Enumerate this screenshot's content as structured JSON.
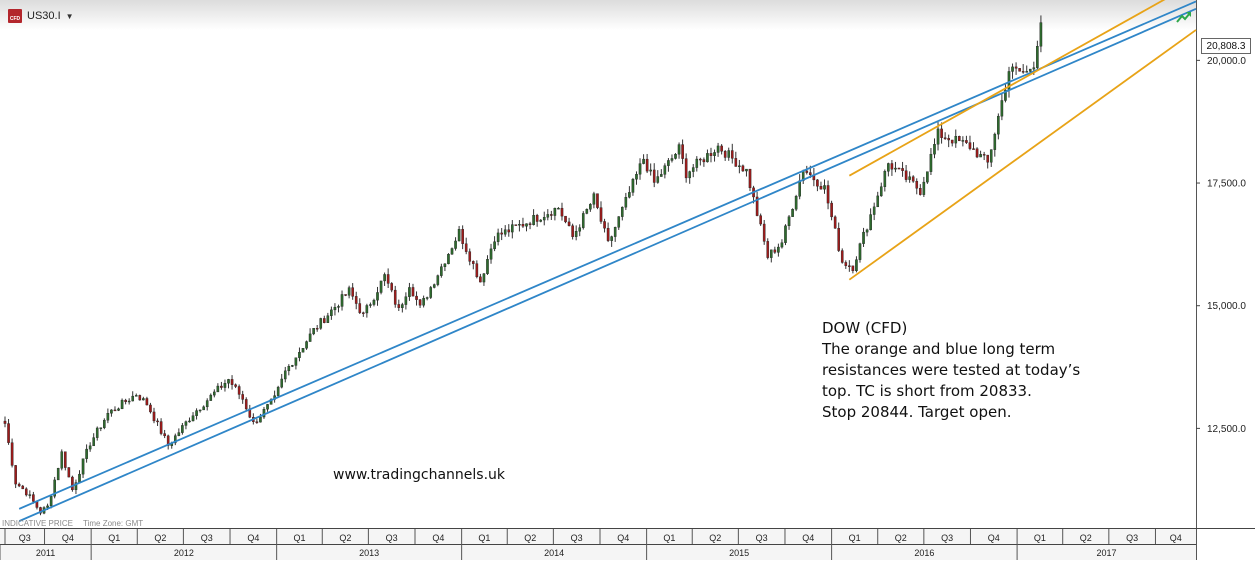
{
  "header": {
    "symbol": "US30.I",
    "icon": "cfd-icon",
    "caret": "▼"
  },
  "footer": {
    "indicative": "INDICATIVE PRICE",
    "timezone": "Time Zone: GMT"
  },
  "annotation": {
    "lines": [
      "DOW (CFD)",
      "The orange and blue long term",
      "resistances were tested at today’s",
      "top. TC is short from 20833.",
      "Stop 20844. Target open."
    ]
  },
  "website": "www.tradingchannels.uk",
  "last_price": "20,808.3",
  "colors": {
    "up": "#2e6b2e",
    "down": "#9e1b1b",
    "blue_line": "#2f86c8",
    "orange_line": "#e8a317",
    "grid": "#000000"
  },
  "chart_data": {
    "type": "candlestick",
    "y_ticks": [
      {
        "value": 12500,
        "label": "12,500.0"
      },
      {
        "value": 15000,
        "label": "15,000.0"
      },
      {
        "value": 17500,
        "label": "17,500.0"
      },
      {
        "value": 20000,
        "label": "20,000.0"
      }
    ],
    "ylim": [
      10470,
      21230
    ],
    "xlim": [
      "2011-07-15",
      "2017-12-20"
    ],
    "quarters": [
      {
        "label": "Q3",
        "start": "2011-07-01"
      },
      {
        "label": "Q4",
        "start": "2011-10-01"
      },
      {
        "label": "Q1",
        "start": "2012-01-01"
      },
      {
        "label": "Q2",
        "start": "2012-04-01"
      },
      {
        "label": "Q3",
        "start": "2012-07-01"
      },
      {
        "label": "Q4",
        "start": "2012-10-01"
      },
      {
        "label": "Q1",
        "start": "2013-01-01"
      },
      {
        "label": "Q2",
        "start": "2013-04-01"
      },
      {
        "label": "Q3",
        "start": "2013-07-01"
      },
      {
        "label": "Q4",
        "start": "2013-10-01"
      },
      {
        "label": "Q1",
        "start": "2014-01-01"
      },
      {
        "label": "Q2",
        "start": "2014-04-01"
      },
      {
        "label": "Q3",
        "start": "2014-07-01"
      },
      {
        "label": "Q4",
        "start": "2014-10-01"
      },
      {
        "label": "Q1",
        "start": "2015-01-01"
      },
      {
        "label": "Q2",
        "start": "2015-04-01"
      },
      {
        "label": "Q3",
        "start": "2015-07-01"
      },
      {
        "label": "Q4",
        "start": "2015-10-01"
      },
      {
        "label": "Q1",
        "start": "2016-01-01"
      },
      {
        "label": "Q2",
        "start": "2016-04-01"
      },
      {
        "label": "Q3",
        "start": "2016-07-01"
      },
      {
        "label": "Q4",
        "start": "2016-10-01"
      },
      {
        "label": "Q1",
        "start": "2017-01-01"
      },
      {
        "label": "Q2",
        "start": "2017-04-01"
      },
      {
        "label": "Q3",
        "start": "2017-07-01"
      },
      {
        "label": "Q4",
        "start": "2017-10-01"
      }
    ],
    "years": [
      {
        "label": "2011",
        "start": "2011-07-01",
        "end": "2012-01-01"
      },
      {
        "label": "2012",
        "start": "2012-01-01",
        "end": "2013-01-01"
      },
      {
        "label": "2013",
        "start": "2013-01-01",
        "end": "2014-01-01"
      },
      {
        "label": "2014",
        "start": "2014-01-01",
        "end": "2015-01-01"
      },
      {
        "label": "2015",
        "start": "2015-01-01",
        "end": "2016-01-01"
      },
      {
        "label": "2016",
        "start": "2016-01-01",
        "end": "2017-01-01"
      },
      {
        "label": "2017",
        "start": "2017-01-01",
        "end": "2018-01-01"
      }
    ],
    "price_path": [
      {
        "date": "2011-07-15",
        "value": 12600
      },
      {
        "date": "2011-08-05",
        "value": 11400
      },
      {
        "date": "2011-08-26",
        "value": 11200
      },
      {
        "date": "2011-09-23",
        "value": 10800
      },
      {
        "date": "2011-10-07",
        "value": 10900
      },
      {
        "date": "2011-11-04",
        "value": 12000
      },
      {
        "date": "2011-11-25",
        "value": 11250
      },
      {
        "date": "2011-12-30",
        "value": 12200
      },
      {
        "date": "2012-02-03",
        "value": 12800
      },
      {
        "date": "2012-03-30",
        "value": 13200
      },
      {
        "date": "2012-04-20",
        "value": 13000
      },
      {
        "date": "2012-06-01",
        "value": 12150
      },
      {
        "date": "2012-07-20",
        "value": 12800
      },
      {
        "date": "2012-09-28",
        "value": 13500
      },
      {
        "date": "2012-10-26",
        "value": 13100
      },
      {
        "date": "2012-11-16",
        "value": 12600
      },
      {
        "date": "2012-12-28",
        "value": 13100
      },
      {
        "date": "2013-01-18",
        "value": 13650
      },
      {
        "date": "2013-03-15",
        "value": 14500
      },
      {
        "date": "2013-05-24",
        "value": 15300
      },
      {
        "date": "2013-06-21",
        "value": 14800
      },
      {
        "date": "2013-08-02",
        "value": 15600
      },
      {
        "date": "2013-08-30",
        "value": 14900
      },
      {
        "date": "2013-09-20",
        "value": 15450
      },
      {
        "date": "2013-10-11",
        "value": 14950
      },
      {
        "date": "2013-12-27",
        "value": 16500
      },
      {
        "date": "2014-02-07",
        "value": 15500
      },
      {
        "date": "2014-03-07",
        "value": 16400
      },
      {
        "date": "2014-07-11",
        "value": 17000
      },
      {
        "date": "2014-08-08",
        "value": 16400
      },
      {
        "date": "2014-09-19",
        "value": 17200
      },
      {
        "date": "2014-10-17",
        "value": 16250
      },
      {
        "date": "2014-12-26",
        "value": 18000
      },
      {
        "date": "2015-01-16",
        "value": 17500
      },
      {
        "date": "2015-03-06",
        "value": 18200
      },
      {
        "date": "2015-03-20",
        "value": 17700
      },
      {
        "date": "2015-05-22",
        "value": 18250
      },
      {
        "date": "2015-07-17",
        "value": 17750
      },
      {
        "date": "2015-08-28",
        "value": 16000
      },
      {
        "date": "2015-09-25",
        "value": 16300
      },
      {
        "date": "2015-11-06",
        "value": 17800
      },
      {
        "date": "2015-12-18",
        "value": 17400
      },
      {
        "date": "2016-01-22",
        "value": 15900
      },
      {
        "date": "2016-02-12",
        "value": 15800
      },
      {
        "date": "2016-04-22",
        "value": 17900
      },
      {
        "date": "2016-06-24",
        "value": 17350
      },
      {
        "date": "2016-07-29",
        "value": 18500
      },
      {
        "date": "2016-09-30",
        "value": 18250
      },
      {
        "date": "2016-11-04",
        "value": 17900
      },
      {
        "date": "2016-12-16",
        "value": 19800
      },
      {
        "date": "2017-01-20",
        "value": 19750
      },
      {
        "date": "2017-02-03",
        "value": 19950
      },
      {
        "date": "2017-02-17",
        "value": 20800
      }
    ],
    "lines": [
      {
        "color": "#2f86c8",
        "from": {
          "date": "2011-08-12",
          "value": 10860
        },
        "to": {
          "date": "2017-12-20",
          "value": 21200
        }
      },
      {
        "color": "#2f86c8",
        "from": {
          "date": "2011-08-12",
          "value": 10610
        },
        "to": {
          "date": "2017-12-20",
          "value": 21050
        }
      },
      {
        "color": "#e8a317",
        "from": {
          "date": "2016-02-05",
          "value": 17650
        },
        "to": {
          "date": "2017-12-20",
          "value": 21600
        }
      },
      {
        "color": "#e8a317",
        "from": {
          "date": "2016-02-05",
          "value": 15530
        },
        "to": {
          "date": "2017-12-20",
          "value": 20620
        }
      }
    ]
  }
}
